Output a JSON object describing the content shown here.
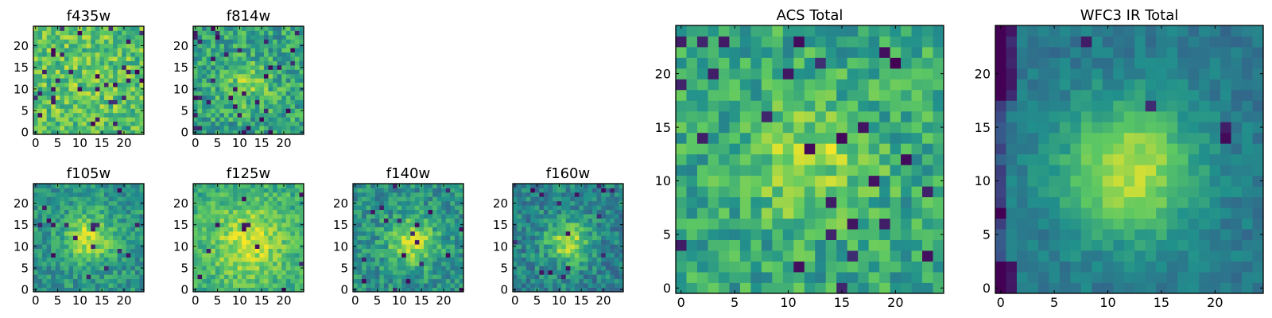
{
  "figure": {
    "colormap": "viridis",
    "colormap_stops": [
      "#440154",
      "#3b528b",
      "#21918c",
      "#5ec962",
      "#fde725"
    ],
    "frame_color": "#000000",
    "background": "#ffffff"
  },
  "chart_data": [
    {
      "type": "heatmap",
      "title": "f435w",
      "xlabel": "",
      "ylabel": "",
      "grid_size": 25,
      "xlim": [
        0,
        24
      ],
      "ylim": [
        0,
        24
      ],
      "xticks": [
        "0",
        "5",
        "10",
        "15",
        "20"
      ],
      "yticks": [
        "0",
        "5",
        "10",
        "15",
        "20"
      ],
      "seed": 3,
      "peak": {
        "x": 12,
        "y": 12,
        "sigma": 8,
        "amplitude": 0.04
      },
      "base": 0.7,
      "noise": 0.2,
      "dark_pixel_fraction": 0.045
    },
    {
      "type": "heatmap",
      "title": "f814w",
      "xlabel": "",
      "ylabel": "",
      "grid_size": 25,
      "xlim": [
        0,
        24
      ],
      "ylim": [
        0,
        24
      ],
      "xticks": [
        "0",
        "5",
        "10",
        "15",
        "20"
      ],
      "yticks": [
        "0",
        "5",
        "10",
        "15",
        "20"
      ],
      "seed": 11,
      "peak": {
        "x": 12,
        "y": 11,
        "sigma": 3.5,
        "amplitude": 0.22
      },
      "base": 0.58,
      "noise": 0.2,
      "dark_pixel_fraction": 0.05
    },
    {
      "type": "heatmap",
      "title": "f105w",
      "xlabel": "",
      "ylabel": "",
      "grid_size": 25,
      "xlim": [
        0,
        24
      ],
      "ylim": [
        0,
        24
      ],
      "xticks": [
        "0",
        "5",
        "10",
        "15",
        "20"
      ],
      "yticks": [
        "0",
        "5",
        "10",
        "15",
        "20"
      ],
      "seed": 23,
      "peak": {
        "x": 12,
        "y": 12,
        "sigma": 4,
        "amplitude": 0.38
      },
      "base": 0.52,
      "noise": 0.15,
      "dark_pixel_fraction": 0.02
    },
    {
      "type": "heatmap",
      "title": "f125w",
      "xlabel": "",
      "ylabel": "",
      "grid_size": 25,
      "xlim": [
        0,
        24
      ],
      "ylim": [
        0,
        24
      ],
      "xticks": [
        "0",
        "5",
        "10",
        "15",
        "20"
      ],
      "yticks": [
        "0",
        "5",
        "10",
        "15",
        "20"
      ],
      "seed": 37,
      "peak": {
        "x": 12,
        "y": 11,
        "sigma": 6,
        "amplitude": 0.3
      },
      "base": 0.62,
      "noise": 0.14,
      "dark_pixel_fraction": 0.02
    },
    {
      "type": "heatmap",
      "title": "f140w",
      "xlabel": "",
      "ylabel": "",
      "grid_size": 25,
      "xlim": [
        0,
        24
      ],
      "ylim": [
        0,
        24
      ],
      "xticks": [
        "0",
        "5",
        "10",
        "15",
        "20"
      ],
      "yticks": [
        "0",
        "5",
        "10",
        "15",
        "20"
      ],
      "seed": 41,
      "peak": {
        "x": 13,
        "y": 11,
        "sigma": 4,
        "amplitude": 0.38
      },
      "base": 0.5,
      "noise": 0.16,
      "dark_pixel_fraction": 0.03
    },
    {
      "type": "heatmap",
      "title": "f160w",
      "xlabel": "",
      "ylabel": "",
      "grid_size": 25,
      "xlim": [
        0,
        24
      ],
      "ylim": [
        0,
        24
      ],
      "xticks": [
        "0",
        "5",
        "10",
        "15",
        "20"
      ],
      "yticks": [
        "0",
        "5",
        "10",
        "15",
        "20"
      ],
      "seed": 53,
      "peak": {
        "x": 12,
        "y": 11,
        "sigma": 3.5,
        "amplitude": 0.42
      },
      "base": 0.45,
      "noise": 0.16,
      "dark_pixel_fraction": 0.03
    },
    {
      "type": "heatmap",
      "title": "ACS Total",
      "xlabel": "",
      "ylabel": "",
      "grid_size": 25,
      "xlim": [
        0,
        24
      ],
      "ylim": [
        0,
        24
      ],
      "xticks": [
        "0",
        "5",
        "10",
        "15",
        "20"
      ],
      "yticks": [
        "0",
        "5",
        "10",
        "15",
        "20"
      ],
      "seed": 71,
      "peak": {
        "x": 12,
        "y": 12,
        "sigma": 4,
        "amplitude": 0.24
      },
      "base": 0.6,
      "noise": 0.18,
      "dark_pixel_fraction": 0.04
    },
    {
      "type": "heatmap",
      "title": "WFC3 IR Total",
      "xlabel": "",
      "ylabel": "",
      "grid_size": 25,
      "xlim": [
        0,
        24
      ],
      "ylim": [
        0,
        24
      ],
      "xticks": [
        "0",
        "5",
        "10",
        "15",
        "20"
      ],
      "yticks": [
        "0",
        "5",
        "10",
        "15",
        "20"
      ],
      "seed": 89,
      "peak": {
        "x": 12,
        "y": 11,
        "sigma": 4.5,
        "amplitude": 0.5
      },
      "base": 0.4,
      "noise": 0.08,
      "dark_pixel_fraction": 0.015,
      "dark_corners": true
    }
  ]
}
